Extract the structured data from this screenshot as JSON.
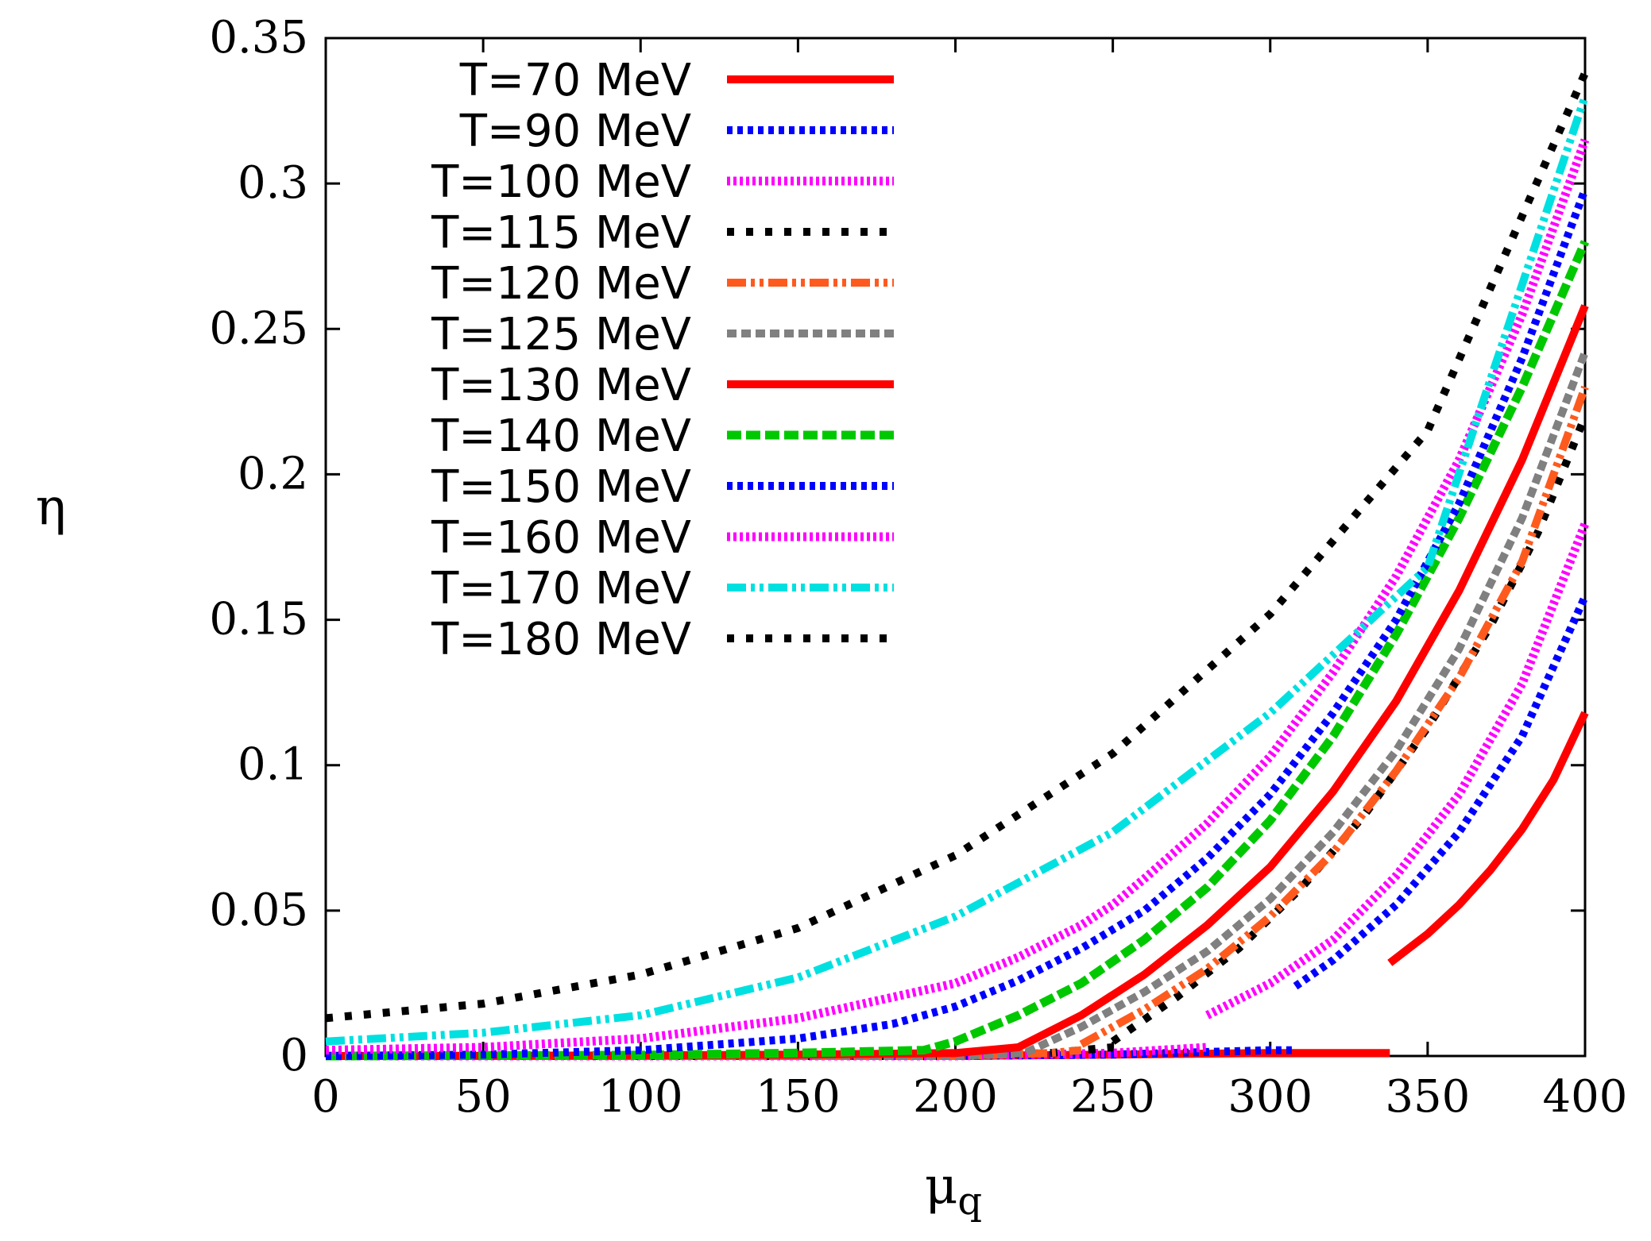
{
  "chart_data": {
    "type": "line",
    "title": "",
    "xlabel": "μ",
    "xlabel_sub": "q",
    "ylabel": "η",
    "xlim": [
      0,
      400
    ],
    "ylim": [
      0,
      0.35
    ],
    "xticks": [
      0,
      50,
      100,
      150,
      200,
      250,
      300,
      350,
      400
    ],
    "yticks": [
      0,
      0.05,
      0.1,
      0.15,
      0.2,
      0.25,
      0.3,
      0.35
    ],
    "xtick_labels": [
      "0",
      "50",
      "100",
      "150",
      "200",
      "250",
      "300",
      "350",
      "400"
    ],
    "ytick_labels": [
      "0",
      "0.05",
      "0.1",
      "0.15",
      "0.2",
      "0.25",
      "0.3",
      "0.35"
    ],
    "grid": false,
    "legend_position": "top-left",
    "series": [
      {
        "name": "T=70 MeV",
        "color": "#ff0000",
        "style": "solid",
        "segments": [
          {
            "x": [
              0,
              100,
              200,
              250,
              300,
              338
            ],
            "y": [
              0,
              0,
              0,
              0.0005,
              0.001,
              0.001
            ]
          },
          {
            "x": [
              338,
              350,
              360,
              370,
              380,
              390,
              400
            ],
            "y": [
              0.032,
              0.042,
              0.052,
              0.064,
              0.078,
              0.095,
              0.118
            ]
          }
        ]
      },
      {
        "name": "T=90 MeV",
        "color": "#0000ff",
        "style": "dotted",
        "segments": [
          {
            "x": [
              0,
              100,
              200,
              250,
              300,
              308
            ],
            "y": [
              0,
              0,
              0,
              0.0005,
              0.002,
              0.002
            ]
          },
          {
            "x": [
              308,
              320,
              340,
              360,
              380,
              400
            ],
            "y": [
              0.024,
              0.033,
              0.052,
              0.077,
              0.11,
              0.158
            ]
          }
        ]
      },
      {
        "name": "T=100 MeV",
        "color": "#ff00ff",
        "style": "dotted-fine",
        "segments": [
          {
            "x": [
              0,
              100,
              200,
              250,
              280
            ],
            "y": [
              0,
              0,
              0,
              0.001,
              0.003
            ]
          },
          {
            "x": [
              280,
              300,
              320,
              340,
              360,
              380,
              400
            ],
            "y": [
              0.014,
              0.025,
              0.04,
              0.062,
              0.09,
              0.128,
              0.183
            ]
          }
        ]
      },
      {
        "name": "T=115 MeV",
        "color": "#000000",
        "style": "dashed-sparse",
        "segments": [
          {
            "x": [
              0,
              100,
              200,
              230,
              250
            ],
            "y": [
              0,
              0,
              0,
              0.001,
              0.003
            ]
          },
          {
            "x": [
              250,
              270,
              290,
              310,
              330,
              350,
              370,
              385,
              400
            ],
            "y": [
              0.005,
              0.02,
              0.037,
              0.058,
              0.083,
              0.113,
              0.148,
              0.18,
              0.22
            ]
          }
        ]
      },
      {
        "name": "T=120 MeV",
        "color": "#ff5a1e",
        "style": "dashdot",
        "segments": [
          {
            "x": [
              0,
              100,
              200,
              230,
              240
            ],
            "y": [
              0,
              0,
              0,
              0.001,
              0.002
            ]
          },
          {
            "x": [
              240,
              260,
              280,
              300,
              320,
              340,
              360,
              380,
              400
            ],
            "y": [
              0.004,
              0.016,
              0.03,
              0.048,
              0.07,
              0.098,
              0.13,
              0.17,
              0.23
            ]
          }
        ]
      },
      {
        "name": "T=125 MeV",
        "color": "#808080",
        "style": "dashed",
        "segments": [
          {
            "x": [
              0,
              100,
              200,
              222,
              240,
              260,
              280,
              300,
              320,
              340,
              360,
              380,
              400
            ],
            "y": [
              0,
              0,
              0,
              0.001,
              0.01,
              0.022,
              0.036,
              0.054,
              0.077,
              0.105,
              0.14,
              0.185,
              0.242
            ]
          }
        ]
      },
      {
        "name": "T=130 MeV",
        "color": "#ff0000",
        "style": "solid",
        "segments": [
          {
            "x": [
              0,
              100,
              150,
              200,
              220,
              240,
              260,
              280,
              300,
              320,
              340,
              360,
              380,
              400
            ],
            "y": [
              0,
              0.0002,
              0.0005,
              0.001,
              0.003,
              0.014,
              0.028,
              0.045,
              0.065,
              0.091,
              0.122,
              0.16,
              0.205,
              0.258
            ]
          }
        ]
      },
      {
        "name": "T=140 MeV",
        "color": "#00c800",
        "style": "dashed-thick",
        "segments": [
          {
            "x": [
              0,
              100,
              150,
              190,
              200,
              220,
              240,
              260,
              280,
              300,
              320,
              340,
              360,
              380,
              400
            ],
            "y": [
              0,
              0.0003,
              0.001,
              0.002,
              0.005,
              0.014,
              0.025,
              0.04,
              0.058,
              0.081,
              0.11,
              0.145,
              0.185,
              0.23,
              0.28
            ]
          }
        ]
      },
      {
        "name": "T=150 MeV",
        "color": "#0000ff",
        "style": "dotted",
        "segments": [
          {
            "x": [
              0,
              50,
              100,
              150,
              180,
              200,
              220,
              240,
              260,
              280,
              300,
              320,
              340,
              360,
              380,
              400
            ],
            "y": [
              0,
              0.0005,
              0.002,
              0.006,
              0.011,
              0.017,
              0.026,
              0.037,
              0.05,
              0.068,
              0.09,
              0.118,
              0.15,
              0.19,
              0.24,
              0.298
            ]
          }
        ]
      },
      {
        "name": "T=160 MeV",
        "color": "#ff00ff",
        "style": "dotted-fine",
        "segments": [
          {
            "x": [
              0,
              50,
              100,
              150,
              200,
              220,
              240,
              250,
              260,
              280,
              300,
              320,
              340,
              360,
              380,
              400
            ],
            "y": [
              0.002,
              0.003,
              0.006,
              0.013,
              0.025,
              0.034,
              0.045,
              0.052,
              0.061,
              0.08,
              0.103,
              0.132,
              0.165,
              0.205,
              0.255,
              0.315
            ]
          }
        ]
      },
      {
        "name": "T=170 MeV",
        "color": "#00e0e0",
        "style": "dashdot",
        "segments": [
          {
            "x": [
              0,
              50,
              100,
              150,
              200,
              250,
              300,
              350,
              400
            ],
            "y": [
              0.005,
              0.008,
              0.014,
              0.027,
              0.048,
              0.077,
              0.118,
              0.168,
              0.33
            ]
          }
        ]
      },
      {
        "name": "T=180 MeV",
        "color": "#000000",
        "style": "dashed-sparse",
        "segments": [
          {
            "x": [
              0,
              50,
              100,
              150,
              200,
              250,
              300,
              350,
              400
            ],
            "y": [
              0.013,
              0.018,
              0.028,
              0.044,
              0.069,
              0.104,
              0.152,
              0.215,
              0.338
            ]
          }
        ]
      }
    ]
  }
}
